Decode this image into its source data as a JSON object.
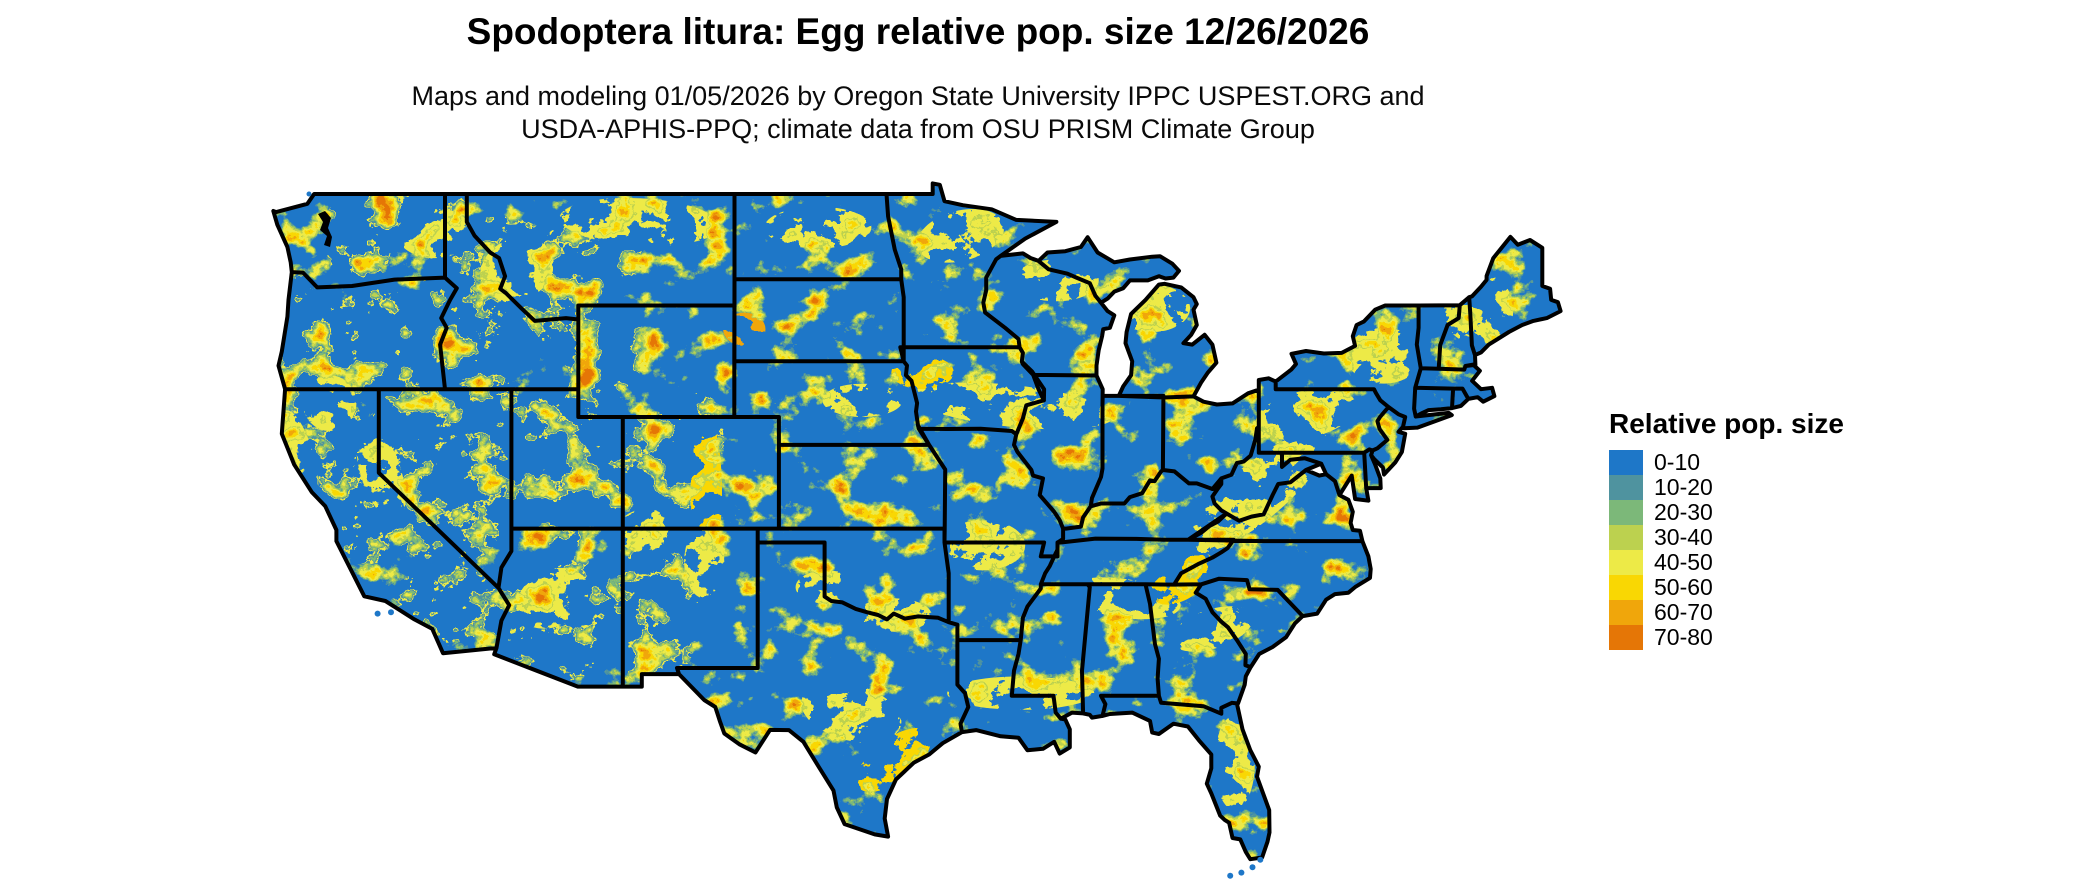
{
  "title": "Spodoptera litura: Egg relative pop. size 12/26/2026",
  "subtitle_line1": "Maps and modeling 01/05/2026 by Oregon State University IPPC USPEST.ORG and",
  "subtitle_line2": "USDA-APHIS-PPQ; climate data from OSU PRISM Climate Group",
  "legend": {
    "title": "Relative pop. size",
    "entries": [
      {
        "label": "0-10",
        "color": "#1e77c8"
      },
      {
        "label": "10-20",
        "color": "#4f939f"
      },
      {
        "label": "20-30",
        "color": "#7cb879"
      },
      {
        "label": "30-40",
        "color": "#bcd14f"
      },
      {
        "label": "40-50",
        "color": "#edea47"
      },
      {
        "label": "50-60",
        "color": "#f9d703"
      },
      {
        "label": "60-70",
        "color": "#f0a60b"
      },
      {
        "label": "70-80",
        "color": "#e57606"
      }
    ]
  },
  "map": {
    "region": "Contiguous United States",
    "water_background": "#ffffff",
    "state_border_color": "#000000",
    "base_color": "#1e77c8"
  }
}
